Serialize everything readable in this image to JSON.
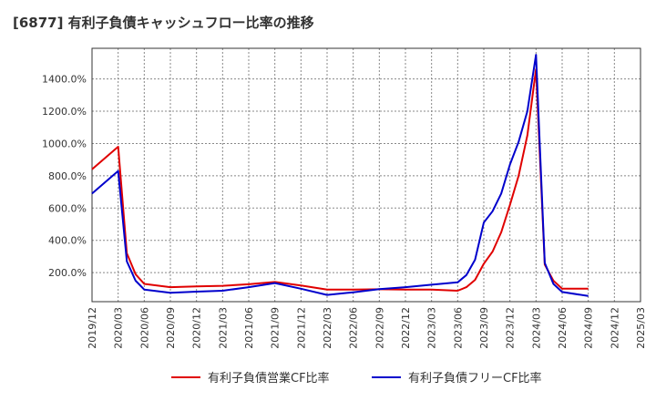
{
  "chart_data": {
    "type": "line",
    "title": "[6877]  有利子負債キャッシュフロー比率の推移",
    "xlabel": "",
    "ylabel": "",
    "ylim": [
      20,
      1590
    ],
    "y_ticks": [
      200,
      400,
      600,
      800,
      1000,
      1200,
      1400
    ],
    "y_tick_labels": [
      "200.0%",
      "400.0%",
      "600.0%",
      "800.0%",
      "1000.0%",
      "1200.0%",
      "1400.0%"
    ],
    "x_tick_labels": [
      "2019/12",
      "2020/03",
      "2020/06",
      "2020/09",
      "2020/12",
      "2021/03",
      "2021/06",
      "2021/09",
      "2021/12",
      "2022/03",
      "2022/06",
      "2022/09",
      "2022/12",
      "2023/03",
      "2023/06",
      "2023/09",
      "2023/12",
      "2024/03",
      "2024/06",
      "2024/09",
      "2024/12",
      "2025/03"
    ],
    "grid": true,
    "legend_position": "bottom",
    "series": [
      {
        "name": "有利子負債営業CF比率",
        "color": "#e00000",
        "x": [
          "2019/12",
          "2020/03",
          "2020/04",
          "2020/05",
          "2020/06",
          "2020/09",
          "2020/12",
          "2021/03",
          "2021/06",
          "2021/09",
          "2021/12",
          "2022/03",
          "2022/06",
          "2022/09",
          "2022/12",
          "2023/03",
          "2023/06",
          "2023/07",
          "2023/08",
          "2023/09",
          "2023/10",
          "2023/11",
          "2023/12",
          "2023/01",
          "2024/02",
          "2024/03",
          "2024/04",
          "2024/05",
          "2024/06",
          "2024/09"
        ],
        "values": [
          840,
          980,
          320,
          190,
          130,
          110,
          115,
          118,
          128,
          142,
          120,
          95,
          95,
          97,
          95,
          95,
          88,
          110,
          155,
          255,
          330,
          450,
          620,
          800,
          1050,
          1460,
          250,
          150,
          100,
          100
        ]
      },
      {
        "name": "有利子負債フリーCF比率",
        "color": "#0000cc",
        "x": [
          "2019/12",
          "2020/03",
          "2020/04",
          "2020/05",
          "2020/06",
          "2020/09",
          "2020/12",
          "2021/03",
          "2021/06",
          "2021/09",
          "2021/12",
          "2022/03",
          "2022/06",
          "2022/09",
          "2022/12",
          "2023/03",
          "2023/06",
          "2023/07",
          "2023/08",
          "2023/09",
          "2023/10",
          "2023/11",
          "2023/12",
          "2023/01",
          "2024/02",
          "2024/03",
          "2024/04",
          "2024/05",
          "2024/06",
          "2024/09"
        ],
        "values": [
          690,
          830,
          270,
          150,
          95,
          75,
          82,
          88,
          110,
          135,
          100,
          62,
          78,
          98,
          110,
          125,
          140,
          185,
          280,
          510,
          580,
          690,
          870,
          1010,
          1200,
          1550,
          260,
          130,
          80,
          55
        ]
      }
    ]
  }
}
